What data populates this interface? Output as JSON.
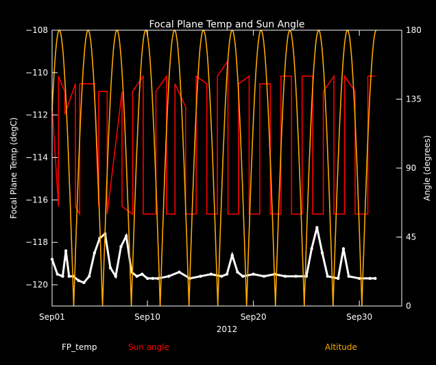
{
  "chart_data": {
    "type": "line",
    "title": "Focal Plane Temp and Sun Angle",
    "xlabel": "2012",
    "ylabel": "Focal Plane Temp (degC)",
    "y2label": "Angle (degrees)",
    "x_range_days": [
      0,
      33
    ],
    "x_ticks": [
      {
        "day": 0,
        "label": "Sep01"
      },
      {
        "day": 9,
        "label": "Sep10"
      },
      {
        "day": 19,
        "label": "Sep20"
      },
      {
        "day": 29,
        "label": "Sep30"
      }
    ],
    "ylim": [
      -121,
      -108
    ],
    "y_ticks": [
      -120,
      -118,
      -116,
      -114,
      -112,
      -110,
      -108
    ],
    "y2lim": [
      0,
      180
    ],
    "y2_ticks": [
      0,
      45,
      90,
      135,
      180
    ],
    "legend_placement": "bottom",
    "colors": {
      "fp_temp": "#ffffff",
      "sun_angle": "#ff0000",
      "altitude": "#ffaa00",
      "axes": "#ffffff",
      "background": "#000000"
    },
    "series": [
      {
        "name": "FP_temp",
        "axis": "left",
        "style": "points",
        "x": [
          0,
          0.5,
          1,
          1.3,
          1.6,
          2,
          2.5,
          3,
          3.5,
          4,
          4.5,
          5,
          5.5,
          6,
          6.5,
          7,
          7.5,
          8,
          8.5,
          9,
          9.5,
          10,
          11,
          12,
          13,
          14,
          15,
          16,
          16.5,
          17,
          17.5,
          18,
          19,
          20,
          21,
          22,
          23,
          24,
          24.5,
          25,
          25.5,
          26,
          27,
          27.5,
          28,
          29,
          30,
          30.5
        ],
        "values": [
          -118.8,
          -119.5,
          -119.6,
          -118.4,
          -119.6,
          -119.6,
          -119.8,
          -119.9,
          -119.6,
          -118.5,
          -117.8,
          -117.6,
          -119.2,
          -119.6,
          -118.2,
          -117.7,
          -119.4,
          -119.6,
          -119.5,
          -119.7,
          -119.7,
          -119.7,
          -119.6,
          -119.4,
          -119.7,
          -119.6,
          -119.5,
          -119.6,
          -119.5,
          -118.6,
          -119.4,
          -119.6,
          -119.5,
          -119.6,
          -119.5,
          -119.6,
          -119.6,
          -119.6,
          -118.3,
          -117.3,
          -118.5,
          -119.6,
          -119.7,
          -118.3,
          -119.6,
          -119.7,
          -119.7,
          -119.7
        ]
      },
      {
        "name": "Sun angle",
        "axis": "right",
        "style": "line",
        "x": [
          0,
          0.6,
          0.6,
          1.2,
          1.2,
          2.2,
          2.2,
          2.6,
          2.6,
          4,
          4,
          4.4,
          4.4,
          5.2,
          5.2,
          6.6,
          6.6,
          7.6,
          7.6,
          8.6,
          8.6,
          9.8,
          9.8,
          10.8,
          10.8,
          11.6,
          11.6,
          12.6,
          12.6,
          13.6,
          13.6,
          14.6,
          14.6,
          15.6,
          15.6,
          16.6,
          16.6,
          17.6,
          17.6,
          18.6,
          18.6,
          19.6,
          19.6,
          20.6,
          20.6,
          21.6,
          21.6,
          22.6,
          22.6,
          23.6,
          23.6,
          24.6,
          24.6,
          25.6,
          25.6,
          26.6,
          26.6,
          27.6,
          27.6,
          28.6,
          28.6,
          29.8,
          29.8,
          30.5
        ],
        "values": [
          130,
          65,
          150,
          140,
          125,
          145,
          65,
          60,
          145,
          145,
          140,
          65,
          140,
          140,
          60,
          140,
          65,
          60,
          140,
          150,
          60,
          60,
          140,
          150,
          60,
          60,
          145,
          130,
          60,
          60,
          150,
          145,
          60,
          60,
          150,
          160,
          60,
          60,
          145,
          150,
          60,
          60,
          145,
          145,
          60,
          60,
          150,
          150,
          60,
          60,
          150,
          150,
          60,
          60,
          140,
          150,
          60,
          60,
          150,
          140,
          60,
          60,
          150,
          150
        ]
      },
      {
        "name": "Altitude",
        "axis": "right",
        "style": "line",
        "model": "|sin| with period 2.72 days",
        "x": [
          0,
          0.68,
          1.36,
          2.04,
          2.72,
          3.4,
          4.08,
          4.76,
          5.44,
          6.12,
          6.8,
          7.48,
          8.16,
          8.84,
          9.52,
          10.2,
          10.88,
          11.56,
          12.24,
          12.92,
          13.6,
          14.28,
          14.96,
          15.64,
          16.32,
          17,
          17.68,
          18.36,
          19.04,
          19.72,
          20.4,
          21.08,
          21.76,
          22.44,
          23.12,
          23.8,
          24.48,
          25.16,
          25.84,
          26.52,
          27.2,
          27.88,
          28.56,
          29.24,
          29.92,
          30.6
        ],
        "values": [
          90,
          180,
          90,
          0,
          90,
          180,
          90,
          0,
          90,
          180,
          90,
          0,
          90,
          180,
          90,
          0,
          90,
          180,
          90,
          0,
          90,
          180,
          90,
          0,
          90,
          180,
          90,
          0,
          90,
          180,
          90,
          0,
          90,
          180,
          90,
          0,
          90,
          180,
          90,
          0,
          90,
          180,
          90,
          0,
          90,
          180
        ]
      }
    ]
  }
}
